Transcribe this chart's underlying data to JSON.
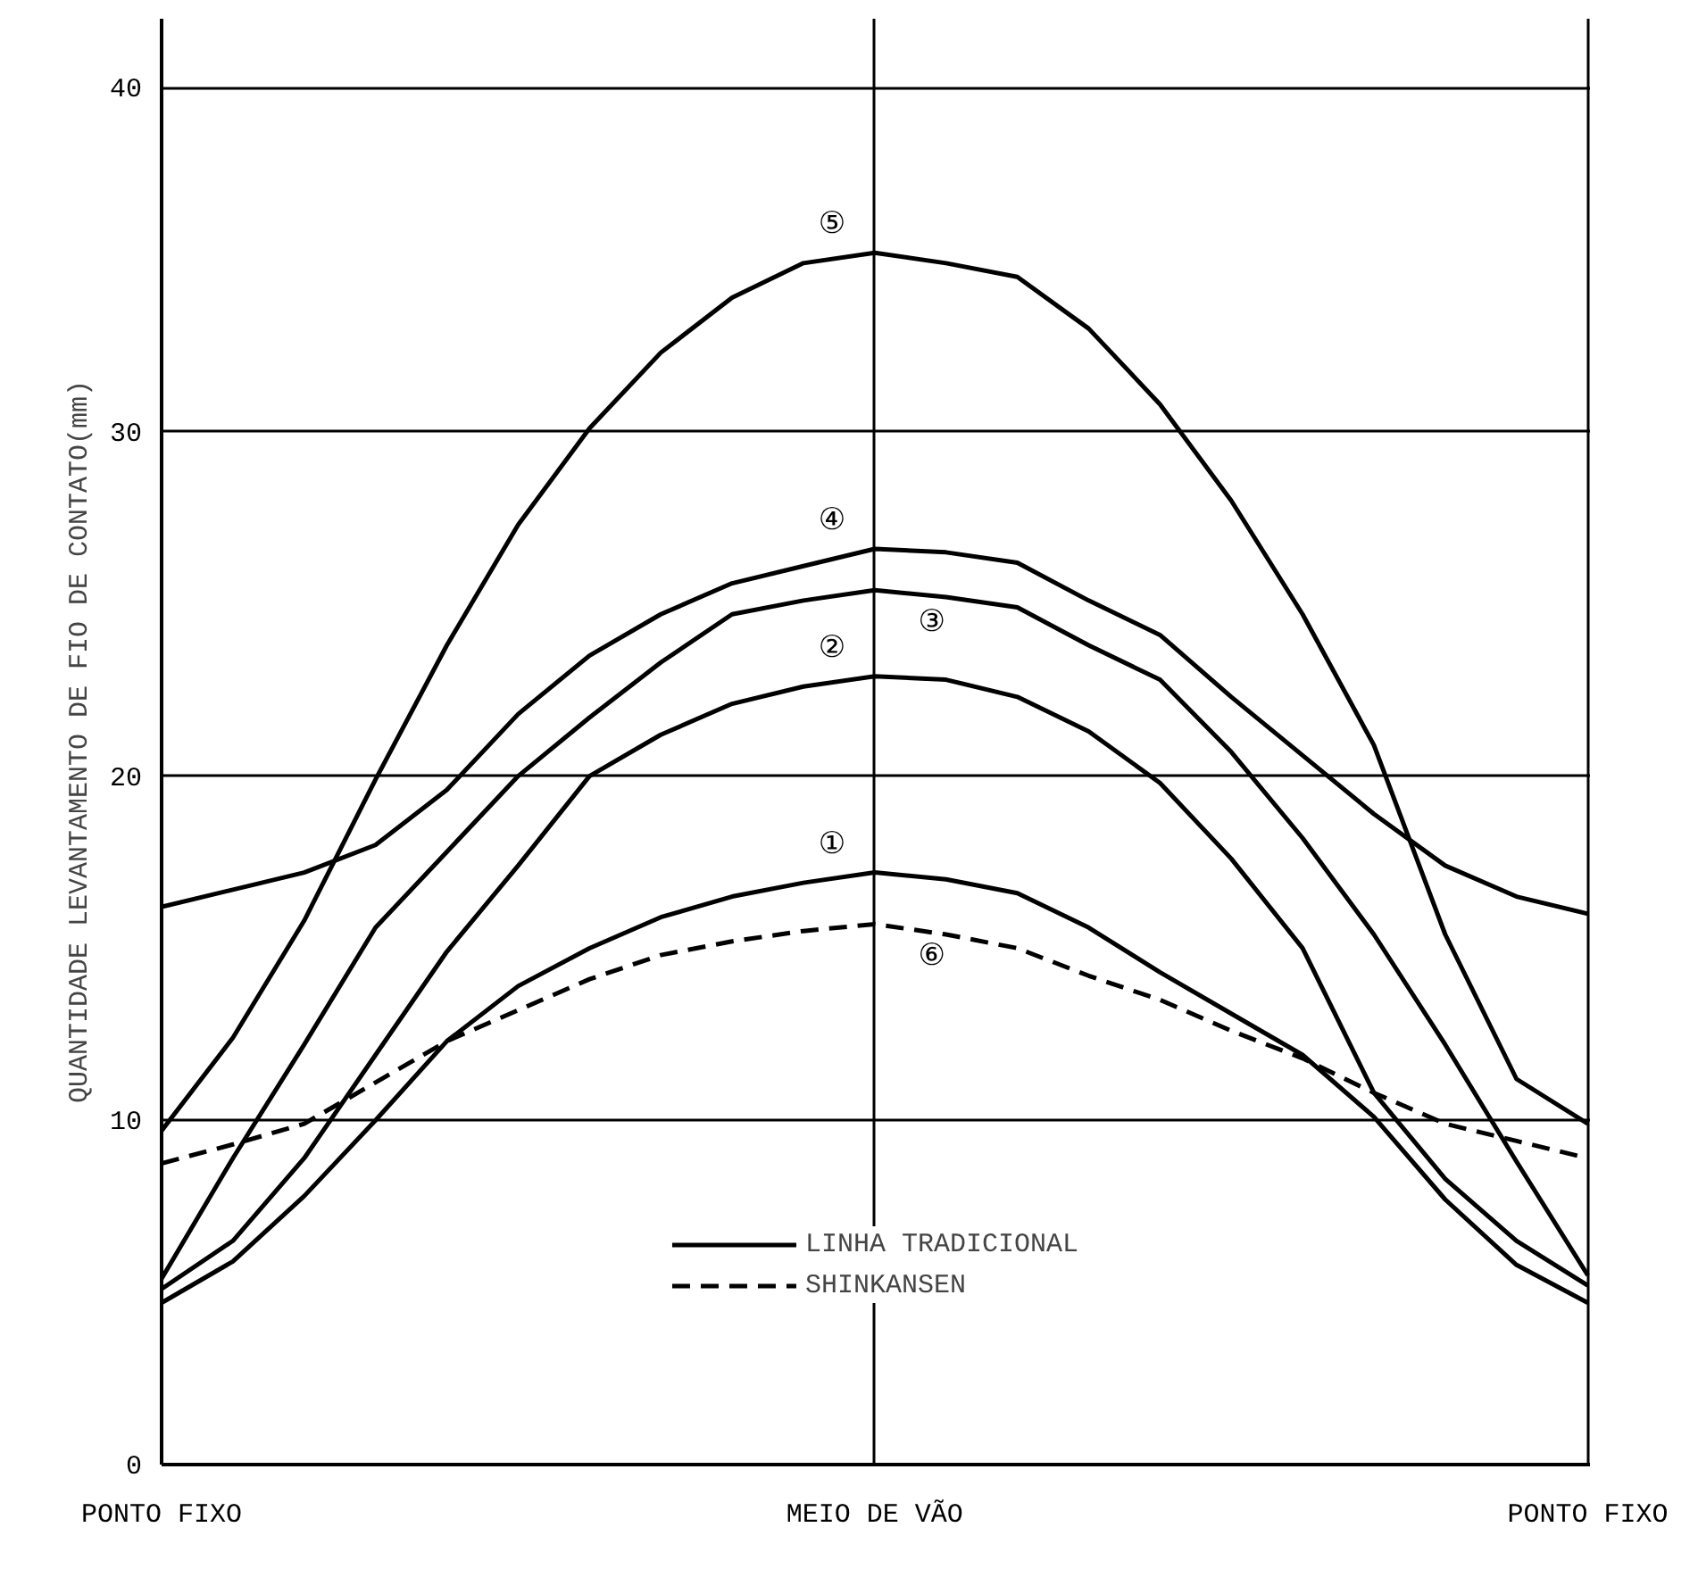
{
  "chart_data": {
    "type": "line",
    "ylabel": "QUANTIDADE LEVANTAMENTO DE FIO DE CONTATO(mm)",
    "categories": [
      "PONTO FIXO",
      null,
      null,
      null,
      null,
      null,
      null,
      null,
      null,
      null,
      "MEIO DE VÃO",
      null,
      null,
      null,
      null,
      null,
      null,
      null,
      null,
      null,
      "PONTO FIXO"
    ],
    "ylim": [
      0,
      42
    ],
    "yticks": [
      0,
      10,
      20,
      30,
      40
    ],
    "grid": true,
    "legend": "bottom",
    "series": [
      {
        "name": "LINHA TRADICIONAL",
        "color": "#000000",
        "line_style": "solid",
        "values": [
          4.7,
          5.9,
          7.8,
          10,
          12.3,
          13.9,
          15,
          15.9,
          16.5,
          16.9,
          17.2,
          17,
          16.6,
          15.6,
          14.3,
          13.1,
          11.9,
          10.1,
          7.7,
          5.8,
          4.7
        ]
      },
      {
        "color": "#000000",
        "line_style": "solid",
        "values": [
          5.1,
          6.5,
          8.9,
          11.9,
          14.9,
          17.4,
          20,
          21.2,
          22.1,
          22.6,
          22.9,
          22.8,
          22.3,
          21.3,
          19.8,
          17.6,
          15,
          10.8,
          8.3,
          6.5,
          5.2
        ]
      },
      {
        "color": "#000000",
        "line_style": "solid",
        "values": [
          5.4,
          8.9,
          12.2,
          15.6,
          17.8,
          20,
          21.7,
          23.3,
          24.7,
          25.1,
          25.4,
          25.2,
          24.9,
          23.8,
          22.8,
          20.7,
          18.2,
          15.4,
          12.2,
          8.8,
          5.5
        ]
      },
      {
        "color": "#000000",
        "line_style": "solid",
        "values": [
          16.2,
          16.7,
          17.2,
          18,
          19.6,
          21.8,
          23.5,
          24.7,
          25.6,
          26.1,
          26.6,
          26.5,
          26.2,
          25.1,
          24.1,
          22.3,
          20.6,
          18.9,
          17.4,
          16.5,
          16
        ]
      },
      {
        "color": "#000000",
        "line_style": "solid",
        "values": [
          9.7,
          12.4,
          15.8,
          19.9,
          23.8,
          27.3,
          30.1,
          32.3,
          33.9,
          34.9,
          35.2,
          34.9,
          34.5,
          33,
          30.8,
          28,
          24.7,
          20.9,
          15.4,
          11.2,
          9.9
        ]
      },
      {
        "name": "SHINKANSEN",
        "color": "#000000",
        "line_style": "dashed",
        "values": [
          8.75,
          9.3,
          9.9,
          11.1,
          12.3,
          13.2,
          14.1,
          14.8,
          15.2,
          15.5,
          15.7,
          15.4,
          15,
          14.2,
          13.5,
          12.6,
          11.8,
          10.8,
          9.9,
          9.4,
          8.9
        ]
      }
    ],
    "annotations": [
      "①",
      "②",
      "③",
      "④",
      "⑤",
      "⑥"
    ]
  }
}
